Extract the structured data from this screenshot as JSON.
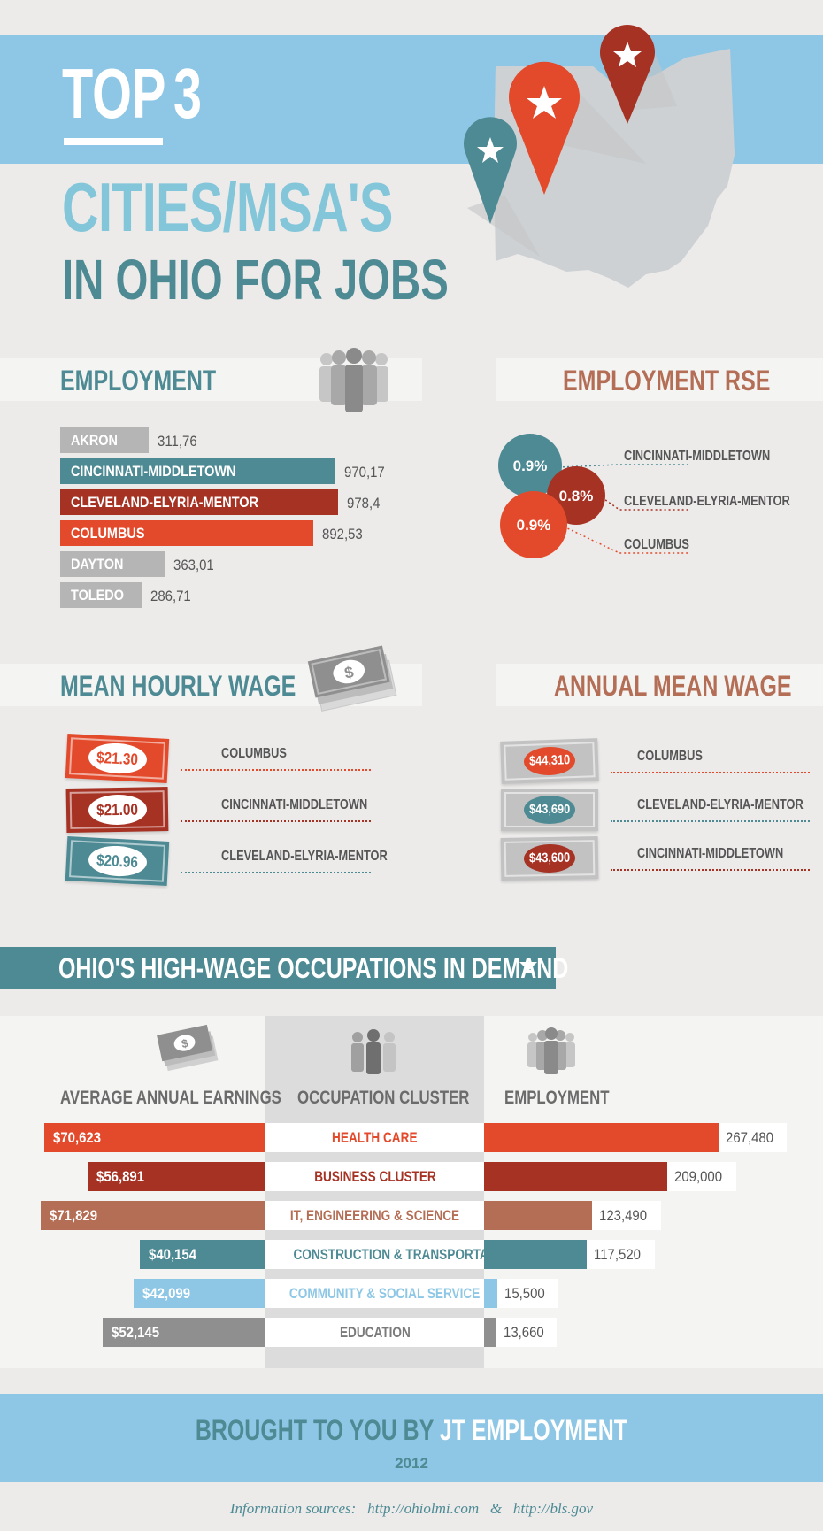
{
  "header": {
    "title_word1": "TOP",
    "title_word2": "3",
    "line2": "CITIES/MSA'S",
    "line3": "IN OHIO FOR JOBS"
  },
  "sections": {
    "employment": "EMPLOYMENT",
    "employment_rse": "EMPLOYMENT RSE",
    "mean_hourly_wage": "MEAN HOURLY WAGE",
    "annual_mean_wage": "ANNUAL MEAN WAGE",
    "occupations": "OHIO'S HIGH-WAGE OCCUPATIONS IN DEMAND"
  },
  "colors": {
    "teal": "#4d8a94",
    "dark_red": "#a63224",
    "orange_red": "#e34a2b",
    "gray": "#b5b5b5",
    "brown": "#b46e55",
    "light_blue": "#8ec7e5",
    "dark_gray": "#8f8f8f"
  },
  "icons": [
    "map-pin-icon",
    "people-group-icon",
    "money-stack-icon",
    "workers-icon",
    "chevron-down-icon"
  ],
  "chart_data": [
    {
      "type": "bar",
      "title": "EMPLOYMENT",
      "categories": [
        "AKRON",
        "CINCINNATI-MIDDLETOWN",
        "CLEVELAND-ELYRIA-MENTOR",
        "COLUMBUS",
        "DAYTON",
        "TOLEDO"
      ],
      "values": [
        311.76,
        970.17,
        978.4,
        892.53,
        363.01,
        286.71
      ],
      "labels": [
        "311,76",
        "970,17",
        "978,4",
        "892,53",
        "363,01",
        "286,71"
      ],
      "colors": [
        "#b5b5b5",
        "#4d8a94",
        "#a63224",
        "#e34a2b",
        "#b5b5b5",
        "#b5b5b5"
      ]
    },
    {
      "type": "scatter",
      "title": "EMPLOYMENT RSE",
      "points": [
        {
          "label": "CINCINNATI-MIDDLETOWN",
          "value": "0.9%",
          "color": "#4d8a94"
        },
        {
          "label": "CLEVELAND-ELYRIA-MENTOR",
          "value": "0.8%",
          "color": "#a63224"
        },
        {
          "label": "COLUMBUS",
          "value": "0.9%",
          "color": "#e34a2b"
        }
      ]
    },
    {
      "type": "table",
      "title": "MEAN HOURLY WAGE",
      "rows": [
        {
          "value": "$21.30",
          "city": "COLUMBUS",
          "color": "#e34a2b"
        },
        {
          "value": "$21.00",
          "city": "CINCINNATI-MIDDLETOWN",
          "color": "#a63224"
        },
        {
          "value": "$20.96",
          "city": "CLEVELAND-ELYRIA-MENTOR",
          "color": "#4d8a94"
        }
      ]
    },
    {
      "type": "table",
      "title": "ANNUAL MEAN WAGE",
      "rows": [
        {
          "value": "$44,310",
          "city": "COLUMBUS",
          "color": "#e34a2b"
        },
        {
          "value": "$43,690",
          "city": "CLEVELAND-ELYRIA-MENTOR",
          "color": "#4d8a94"
        },
        {
          "value": "$43,600",
          "city": "CINCINNATI-MIDDLETOWN",
          "color": "#a63224"
        }
      ]
    },
    {
      "type": "bar",
      "title": "OHIO'S HIGH-WAGE OCCUPATIONS IN DEMAND",
      "column_heads": [
        "AVERAGE ANNUAL EARNINGS",
        "OCCUPATION CLUSTER",
        "EMPLOYMENT"
      ],
      "categories": [
        "HEALTH CARE",
        "BUSINESS CLUSTER",
        "IT, ENGINEERING & SCIENCE",
        "CONSTRUCTION & TRANSPORTATION",
        "COMMUNITY & SOCIAL SERVICE",
        "EDUCATION"
      ],
      "earnings": [
        70623,
        56891,
        71829,
        40154,
        42099,
        52145
      ],
      "earnings_labels": [
        "$70,623",
        "$56,891",
        "$71,829",
        "$40,154",
        "$42,099",
        "$52,145"
      ],
      "employment": [
        267480,
        209000,
        123490,
        117520,
        15500,
        13660
      ],
      "employment_labels": [
        "267,480",
        "209,000",
        "123,490",
        "117,520",
        "15,500",
        "13,660"
      ],
      "colors": [
        "#e34a2b",
        "#a63224",
        "#b46e55",
        "#4d8a94",
        "#8ec7e5",
        "#8f8f8f"
      ]
    }
  ],
  "footer": {
    "text_prefix": "BROUGHT TO YOU BY ",
    "brand": "JT EMPLOYMENT",
    "year": "2012",
    "sources_label": "Information sources:",
    "source1": "http://ohiolmi.com",
    "amp": "&",
    "source2": "http://bls.gov"
  }
}
